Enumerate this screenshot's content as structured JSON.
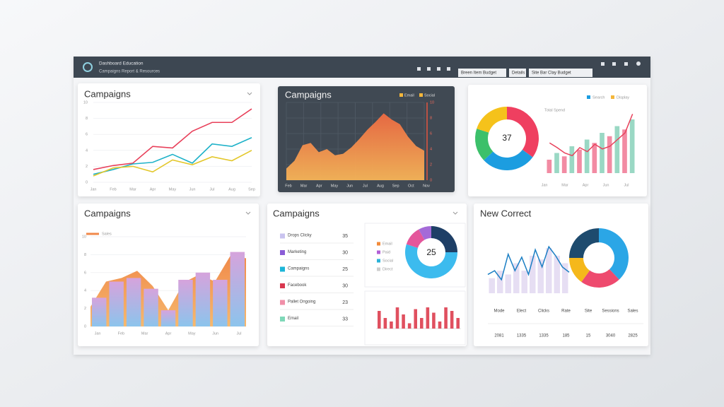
{
  "header": {
    "title": "Dashboard Education",
    "subtitle": "Campaigns Report & Resources",
    "tabs": [
      "Breen Item Budget",
      "Details",
      "Site Bar Clay Budget"
    ]
  },
  "panels": [
    {
      "type": "line",
      "title": "Campaigns",
      "ylim": [
        0,
        10
      ],
      "yticks": [
        0,
        2,
        4,
        6,
        8,
        10
      ],
      "categories": [
        "Jan",
        "Feb",
        "Mar",
        "Apr",
        "May",
        "Jun",
        "Jul",
        "Aug",
        "Sep"
      ],
      "series": [
        {
          "color": "#e8405a",
          "values": [
            1.6,
            2.1,
            2.4,
            4.5,
            4.3,
            6.4,
            7.5,
            7.5,
            9.2
          ]
        },
        {
          "color": "#1fb2c9",
          "values": [
            1.0,
            1.6,
            2.3,
            2.5,
            3.5,
            2.4,
            4.8,
            4.5,
            5.6
          ]
        },
        {
          "color": "#e3c72a",
          "values": [
            0.8,
            1.8,
            2.0,
            1.3,
            2.8,
            2.2,
            3.2,
            2.7,
            4.0
          ]
        }
      ]
    },
    {
      "type": "area",
      "title": "Campaigns",
      "ylim": [
        0,
        10
      ],
      "yticks": [
        0,
        2,
        4,
        6,
        8,
        10
      ],
      "legend": [
        {
          "label": "Email",
          "color": "#f4b63a"
        },
        {
          "label": "Social",
          "color": "#f4b63a"
        }
      ],
      "x_labels": [
        "Feb",
        "Mar",
        "Apr",
        "May",
        "Jun",
        "Jul",
        "Aug",
        "Sep",
        "Oct",
        "Nov"
      ],
      "values": [
        1.5,
        2.5,
        4.5,
        4.8,
        3.6,
        4.0,
        3.2,
        3.4,
        4.2,
        5.3,
        6.5,
        7.5,
        8.6,
        7.8,
        7.2,
        5.6,
        4.4,
        3.8
      ]
    },
    {
      "type": "donut_combo",
      "center_label": "37",
      "subtitle": "Total Spend",
      "segments": [
        {
          "color": "#ef3f60",
          "value": 35
        },
        {
          "color": "#1c9de0",
          "value": 28
        },
        {
          "color": "#3cc06a",
          "value": 17
        },
        {
          "color": "#f5c21b",
          "value": 20
        }
      ],
      "legend": [
        {
          "label": "Search",
          "color": "#1c9de0"
        },
        {
          "label": "Display",
          "color": "#f4b63a"
        }
      ],
      "ylim": [
        0,
        10
      ],
      "x_labels": [
        "Jan",
        "Mar",
        "Apr",
        "Jun",
        "Jul"
      ],
      "bar_colors": [
        "#f28ba3",
        "#9ad8c4"
      ],
      "bars": [
        2,
        3,
        2.5,
        4,
        3.5,
        5,
        4.5,
        6,
        5.5,
        7,
        6.5,
        8
      ],
      "line": [
        4.5,
        3.8,
        3,
        2.6,
        3.8,
        3.2,
        4.3,
        3.6,
        4.0,
        5.0,
        6.0,
        8.8
      ],
      "line_color": "#e8405a"
    },
    {
      "type": "area_bars",
      "title": "Campaigns",
      "legend": {
        "label": "Sales",
        "color": "#f0884a"
      },
      "ylim": [
        0,
        10
      ],
      "yticks": [
        0,
        2,
        4,
        6,
        8,
        10
      ],
      "x_labels": [
        "Jan",
        "Feb",
        "Mar",
        "Apr",
        "May",
        "Jun",
        "Jul"
      ],
      "values": [
        2.2,
        5.0,
        5.4,
        6.2,
        4.5,
        1.8,
        4.9,
        5.8,
        5.0,
        7.9,
        7.6
      ],
      "bars": [
        3.2,
        5.0,
        5.4,
        4.2,
        1.8,
        5.2,
        6.0,
        5.2,
        8.3
      ]
    },
    {
      "type": "list_donut",
      "title": "Campaigns",
      "rows": [
        {
          "label": "Drops Clicky",
          "color": "#c9c3ef",
          "value": 35
        },
        {
          "label": "Marketing",
          "color": "#8a5cd6",
          "value": 30
        },
        {
          "label": "Campaigns",
          "color": "#1cb6d8",
          "value": 25
        },
        {
          "label": "Facebook",
          "color": "#d9384f",
          "value": 30
        },
        {
          "label": "Pallet Ongoing",
          "color": "#f08fa8",
          "value": 23
        },
        {
          "label": "Email",
          "color": "#7fd8b8",
          "value": 33
        }
      ],
      "center_label": "25",
      "segments": [
        {
          "color": "#1e3f66",
          "value": 25
        },
        {
          "color": "#3cbbee",
          "value": 55
        },
        {
          "color": "#e4569b",
          "value": 12
        },
        {
          "color": "#a46ad8",
          "value": 8
        }
      ],
      "donut_legend": [
        {
          "label": "Email",
          "color": "#f28b3a"
        },
        {
          "label": "Paid",
          "color": "#b25fd6"
        },
        {
          "label": "Social",
          "color": "#2bb3d9"
        },
        {
          "label": "Direct",
          "color": "#cccccc"
        }
      ],
      "ylim": [
        0,
        8
      ],
      "bar_color": "#e0505f",
      "bars": [
        5,
        3,
        2,
        6,
        4,
        1.5,
        5.5,
        3,
        6,
        4.5,
        2,
        6,
        5,
        3
      ]
    },
    {
      "type": "line_donut_table",
      "title": "New Correct",
      "ylim": [
        0,
        8
      ],
      "values": [
        2.5,
        3.0,
        1.8,
        5.2,
        3.0,
        4.8,
        2.5,
        5.8,
        3.5,
        6.2,
        5.0,
        3.5,
        2.8
      ],
      "line_color": "#1c7fc4",
      "bars": [
        2,
        3,
        2.5,
        4,
        3,
        5,
        4.5,
        6,
        5,
        4
      ],
      "bar_color": "#e6def3",
      "segments": [
        {
          "color": "#2ba6e6",
          "value": 38
        },
        {
          "color": "#ee4a6e",
          "value": 22
        },
        {
          "color": "#f5b81b",
          "value": 15
        },
        {
          "color": "#1e4b6e",
          "value": 25
        }
      ],
      "table": {
        "headers": [
          "Mode",
          "Elect",
          "Clicks",
          "Rate",
          "Site",
          "Sessions",
          "Sales"
        ],
        "values": [
          2081,
          1335,
          1335,
          185,
          15,
          3040,
          2825
        ]
      }
    }
  ]
}
